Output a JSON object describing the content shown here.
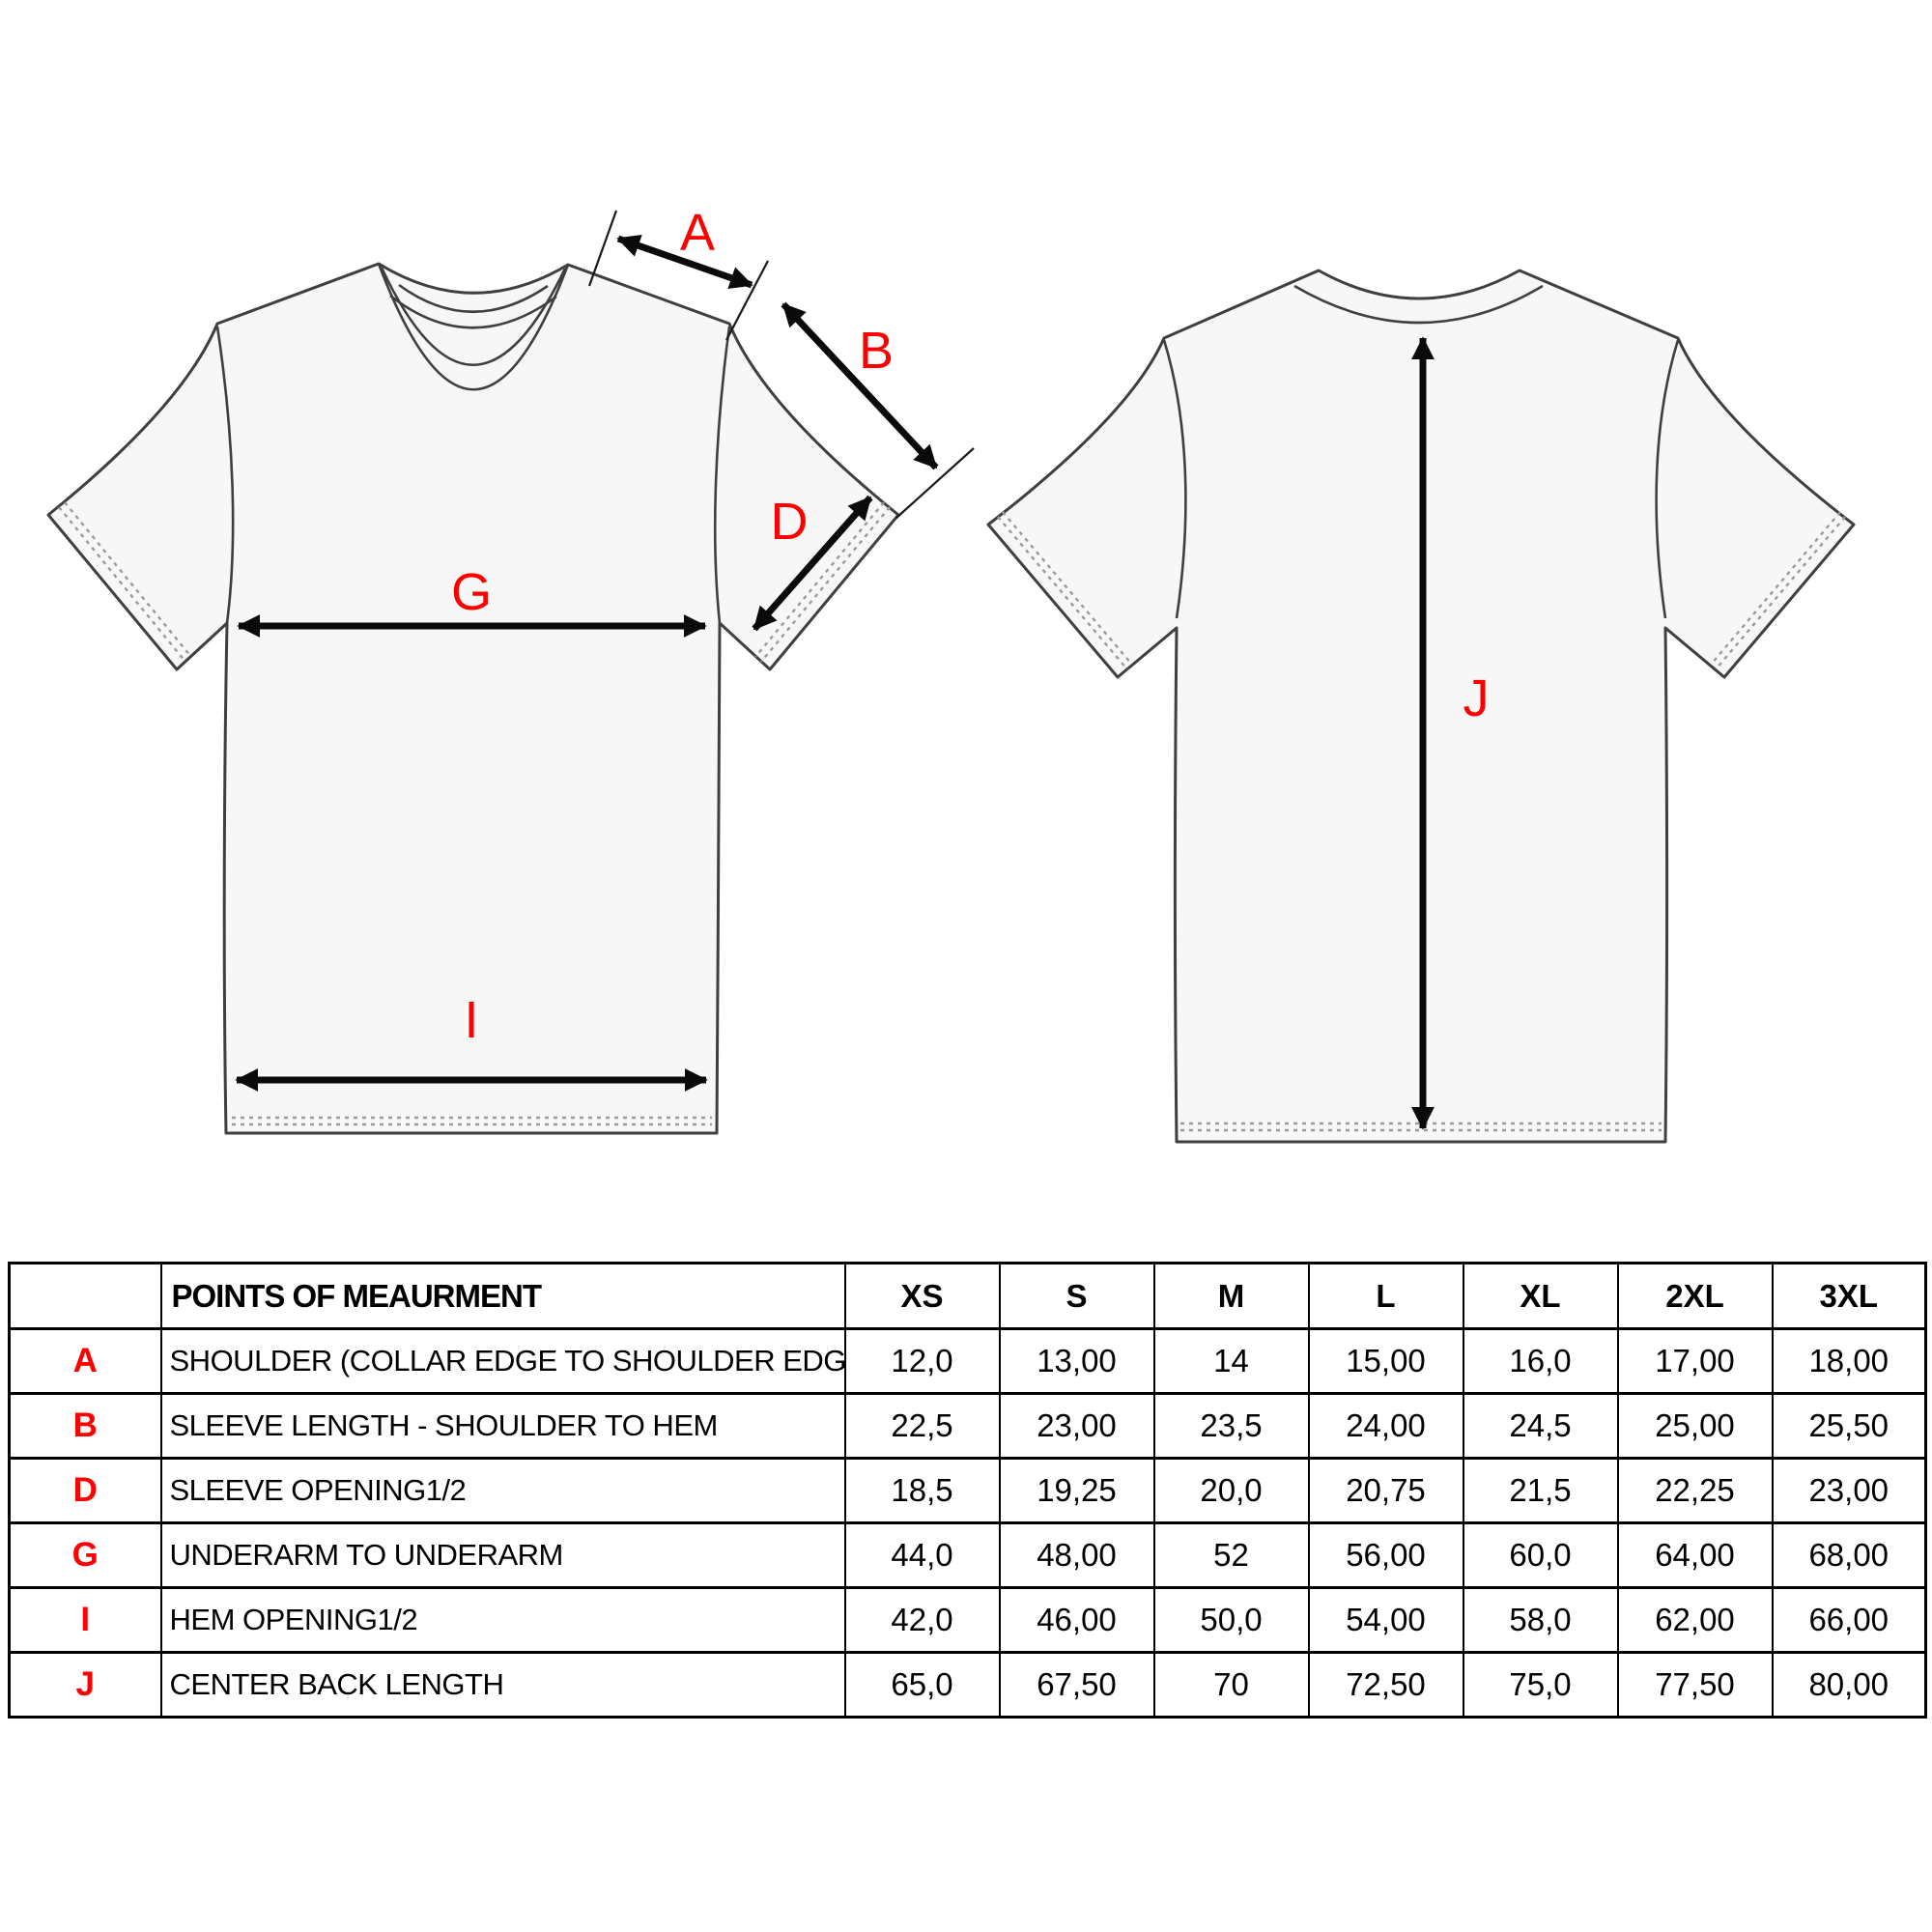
{
  "diagram": {
    "labels": {
      "a": "A",
      "b": "B",
      "d": "D",
      "g": "G",
      "i": "I",
      "j": "J"
    },
    "label_color": "#ff0000",
    "views": [
      "front",
      "back"
    ]
  },
  "table": {
    "header": {
      "corner": "",
      "points_col": "POINTS OF MEAURMENT",
      "sizes": [
        "XS",
        "S",
        "M",
        "L",
        "XL",
        "2XL",
        "3XL"
      ]
    },
    "letter_color": "#ff0000",
    "rows": [
      {
        "letter": "A",
        "name": "SHOULDER (COLLAR EDGE TO SHOULDER EDGE)",
        "values": [
          "12,0",
          "13,00",
          "14",
          "15,00",
          "16,0",
          "17,00",
          "18,00"
        ]
      },
      {
        "letter": "B",
        "name": "SLEEVE LENGTH - SHOULDER TO HEM",
        "values": [
          "22,5",
          "23,00",
          "23,5",
          "24,00",
          "24,5",
          "25,00",
          "25,50"
        ]
      },
      {
        "letter": "D",
        "name": "SLEEVE OPENING1/2",
        "values": [
          "18,5",
          "19,25",
          "20,0",
          "20,75",
          "21,5",
          "22,25",
          "23,00"
        ]
      },
      {
        "letter": "G",
        "name": "UNDERARM TO UNDERARM",
        "values": [
          "44,0",
          "48,00",
          "52",
          "56,00",
          "60,0",
          "64,00",
          "68,00"
        ]
      },
      {
        "letter": "I",
        "name": "HEM OPENING1/2",
        "values": [
          "42,0",
          "46,00",
          "50,0",
          "54,00",
          "58,0",
          "62,00",
          "66,00"
        ]
      },
      {
        "letter": "J",
        "name": "CENTER BACK LENGTH",
        "values": [
          "65,0",
          "67,50",
          "70",
          "72,50",
          "75,0",
          "77,50",
          "80,00"
        ]
      }
    ]
  }
}
